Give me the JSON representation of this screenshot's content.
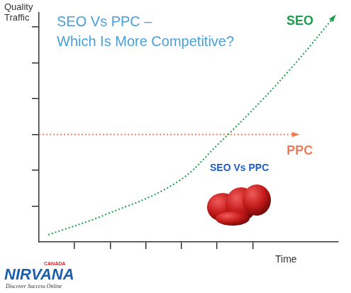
{
  "chart_data": {
    "type": "line",
    "title": "SEO Vs PPC – Which Is More Competitive?",
    "x_label": "Time",
    "y_label": "Quality Traffic",
    "annotation": "SEO Vs PPC",
    "logo": {
      "top": "CANADA",
      "name": "NIRVANA",
      "tagline": "Discover Success Online"
    },
    "series": [
      {
        "name": "SEO",
        "color": "#1a9e4a",
        "line_style": "dotted",
        "marker": "none",
        "x": [
          0.26,
          1.86,
          3.86,
          5.06,
          6.26,
          7.26,
          8.26
        ],
        "values": [
          0.2,
          0.76,
          1.66,
          2.76,
          3.96,
          5.06,
          6.26
        ]
      },
      {
        "name": "PPC",
        "color": "#f07a5a",
        "line_style": "dotted",
        "marker": "none",
        "x": [
          0,
          7.2
        ],
        "values": [
          3,
          3
        ]
      }
    ],
    "xlim": [
      0,
      8.4
    ],
    "xticks": [
      1,
      2,
      3,
      4,
      5,
      6
    ],
    "ylim": [
      0,
      6.4
    ],
    "yticks": [
      1,
      2,
      3,
      4,
      5,
      6
    ],
    "grid": false,
    "tick_labels": false
  }
}
